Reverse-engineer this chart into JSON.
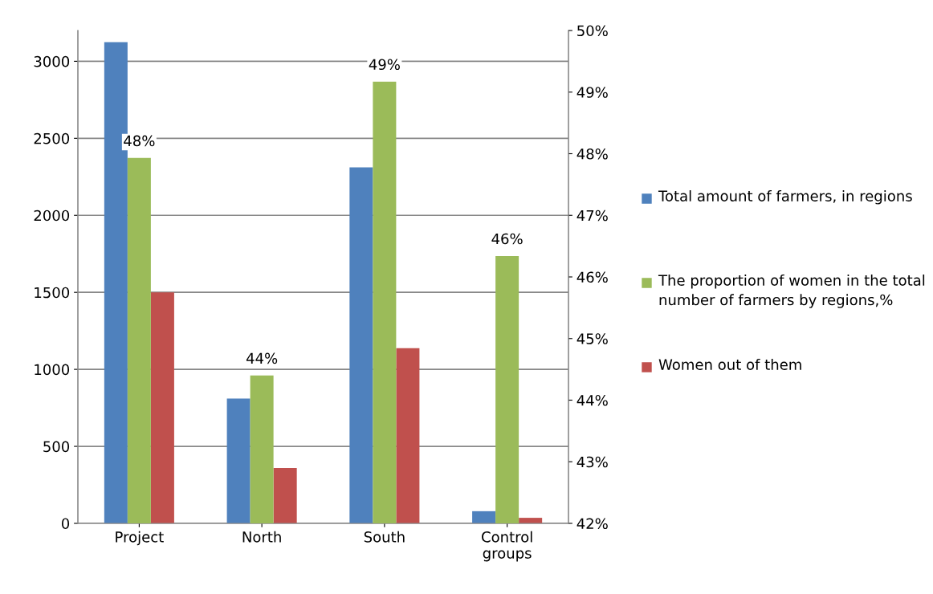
{
  "chart_data": {
    "type": "bar",
    "categories": [
      "Project",
      "North",
      "South",
      "Control\ngroups"
    ],
    "series": [
      {
        "name": "Total amount of farmers, in regions",
        "color": "#4f81bd",
        "values": [
          3125,
          810,
          2311,
          79
        ]
      },
      {
        "name": "The proportion of women in the total number of farmers by regions,%",
        "color": "#9bbb59",
        "axis": "y2",
        "values": [
          47.93,
          44.4,
          49.17,
          46.34
        ],
        "value_labels": [
          "48%",
          "44%",
          "49%",
          "46%"
        ]
      },
      {
        "name": "Women out of them",
        "color": "#c0504d",
        "values": [
          1500,
          360,
          1137,
          36
        ]
      }
    ],
    "ylim": [
      0,
      3200
    ],
    "yticks": [
      0,
      500,
      1000,
      1500,
      2000,
      2500,
      3000
    ],
    "y2lim": [
      42,
      50
    ],
    "y2ticks": [
      {
        "value": 42,
        "label": "42%"
      },
      {
        "value": 43,
        "label": "43%"
      },
      {
        "value": 44,
        "label": "44%"
      },
      {
        "value": 45,
        "label": "45%"
      },
      {
        "value": 46,
        "label": "46%"
      },
      {
        "value": 47,
        "label": "47%"
      },
      {
        "value": 48,
        "label": "48%"
      },
      {
        "value": 49,
        "label": "49%"
      },
      {
        "value": 50,
        "label": "50%"
      }
    ],
    "grid": "y",
    "legend": "right"
  }
}
